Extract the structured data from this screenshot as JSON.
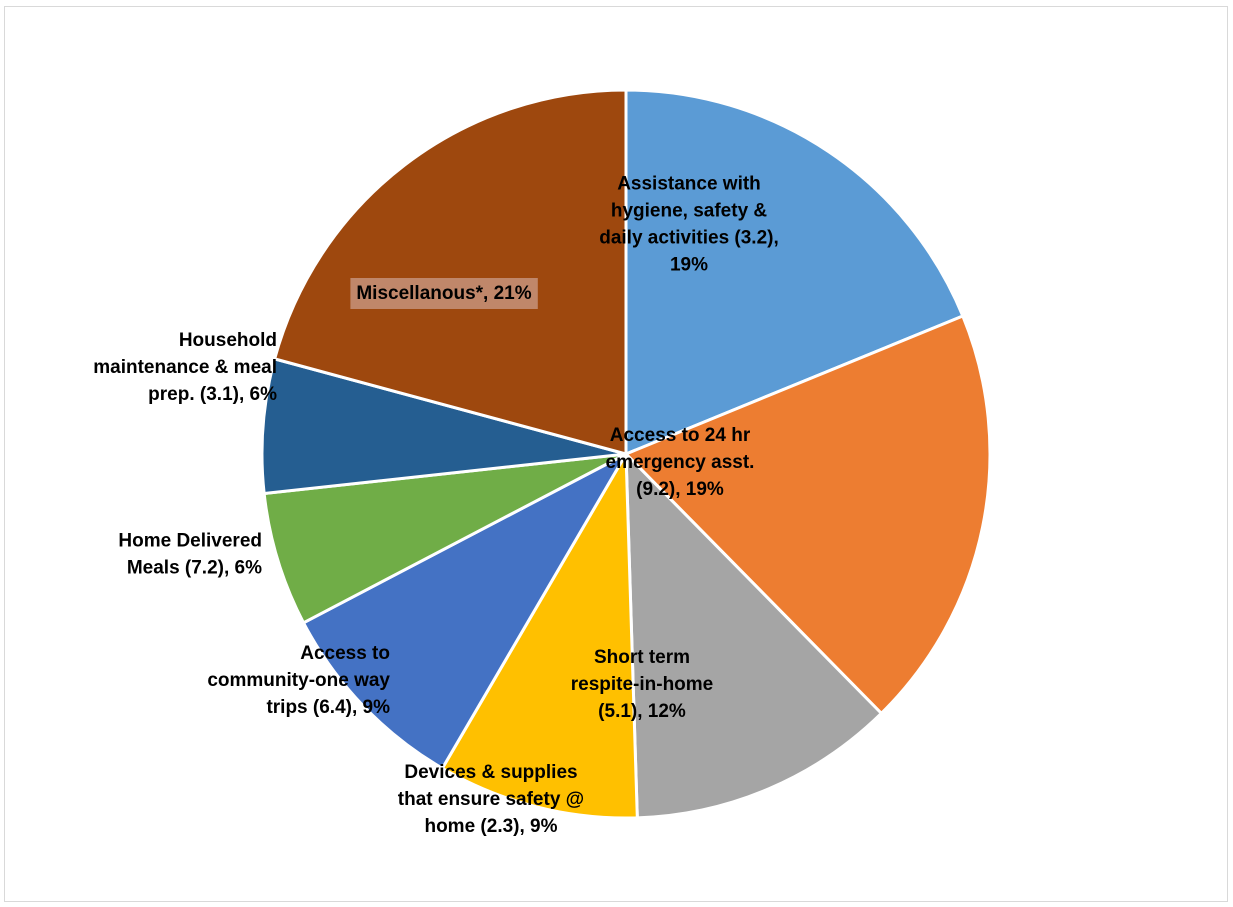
{
  "chart_data": {
    "type": "pie",
    "title": "",
    "start_angle_deg": 0,
    "direction": "clockwise",
    "legend": "none",
    "slices": [
      {
        "label": "Assistance with hygiene, safety & daily activities (3.2)",
        "value": 19,
        "percent_label": "19%",
        "color": "#5B9BD5",
        "label_lines": [
          "Assistance with",
          "hygiene, safety &",
          "daily activities (3.2),",
          "19%"
        ],
        "label_align": "middle"
      },
      {
        "label": "Access to 24 hr emergency asst. (9.2)",
        "value": 19,
        "percent_label": "19%",
        "color": "#ED7D31",
        "label_lines": [
          "Access to 24 hr",
          "emergency asst.",
          "(9.2), 19%"
        ],
        "label_align": "middle"
      },
      {
        "label": "Short term respite-in-home (5.1)",
        "value": 12,
        "percent_label": "12%",
        "color": "#A5A5A5",
        "label_lines": [
          "Short term",
          "respite-in-home",
          "(5.1), 12%"
        ],
        "label_align": "middle"
      },
      {
        "label": "Devices & supplies that ensure safety @ home (2.3)",
        "value": 9,
        "percent_label": "9%",
        "color": "#FFC000",
        "label_lines": [
          "Devices & supplies",
          "that ensure safety @",
          "home (2.3), 9%"
        ],
        "label_align": "middle"
      },
      {
        "label": "Access to community-one way trips (6.4)",
        "value": 9,
        "percent_label": "9%",
        "color": "#4472C4",
        "label_lines": [
          "Access to",
          "community-one way",
          "trips (6.4), 9%"
        ],
        "label_align": "end"
      },
      {
        "label": "Home Delivered Meals (7.2)",
        "value": 6,
        "percent_label": "6%",
        "color": "#70AD47",
        "label_lines": [
          "Home Delivered",
          "Meals (7.2), 6%"
        ],
        "label_align": "end"
      },
      {
        "label": "Household maintenance & meal prep. (3.1)",
        "value": 6,
        "percent_label": "6%",
        "color": "#255E91",
        "label_lines": [
          "Household",
          "maintenance & meal",
          "prep. (3.1), 6%"
        ],
        "label_align": "end"
      },
      {
        "label": "Miscellanous*",
        "value": 21,
        "percent_label": "21%",
        "color": "#9E480E",
        "label_lines": [
          "Miscellanous*, 21%"
        ],
        "label_align": "middle",
        "label_box": "#C0876A"
      }
    ]
  }
}
